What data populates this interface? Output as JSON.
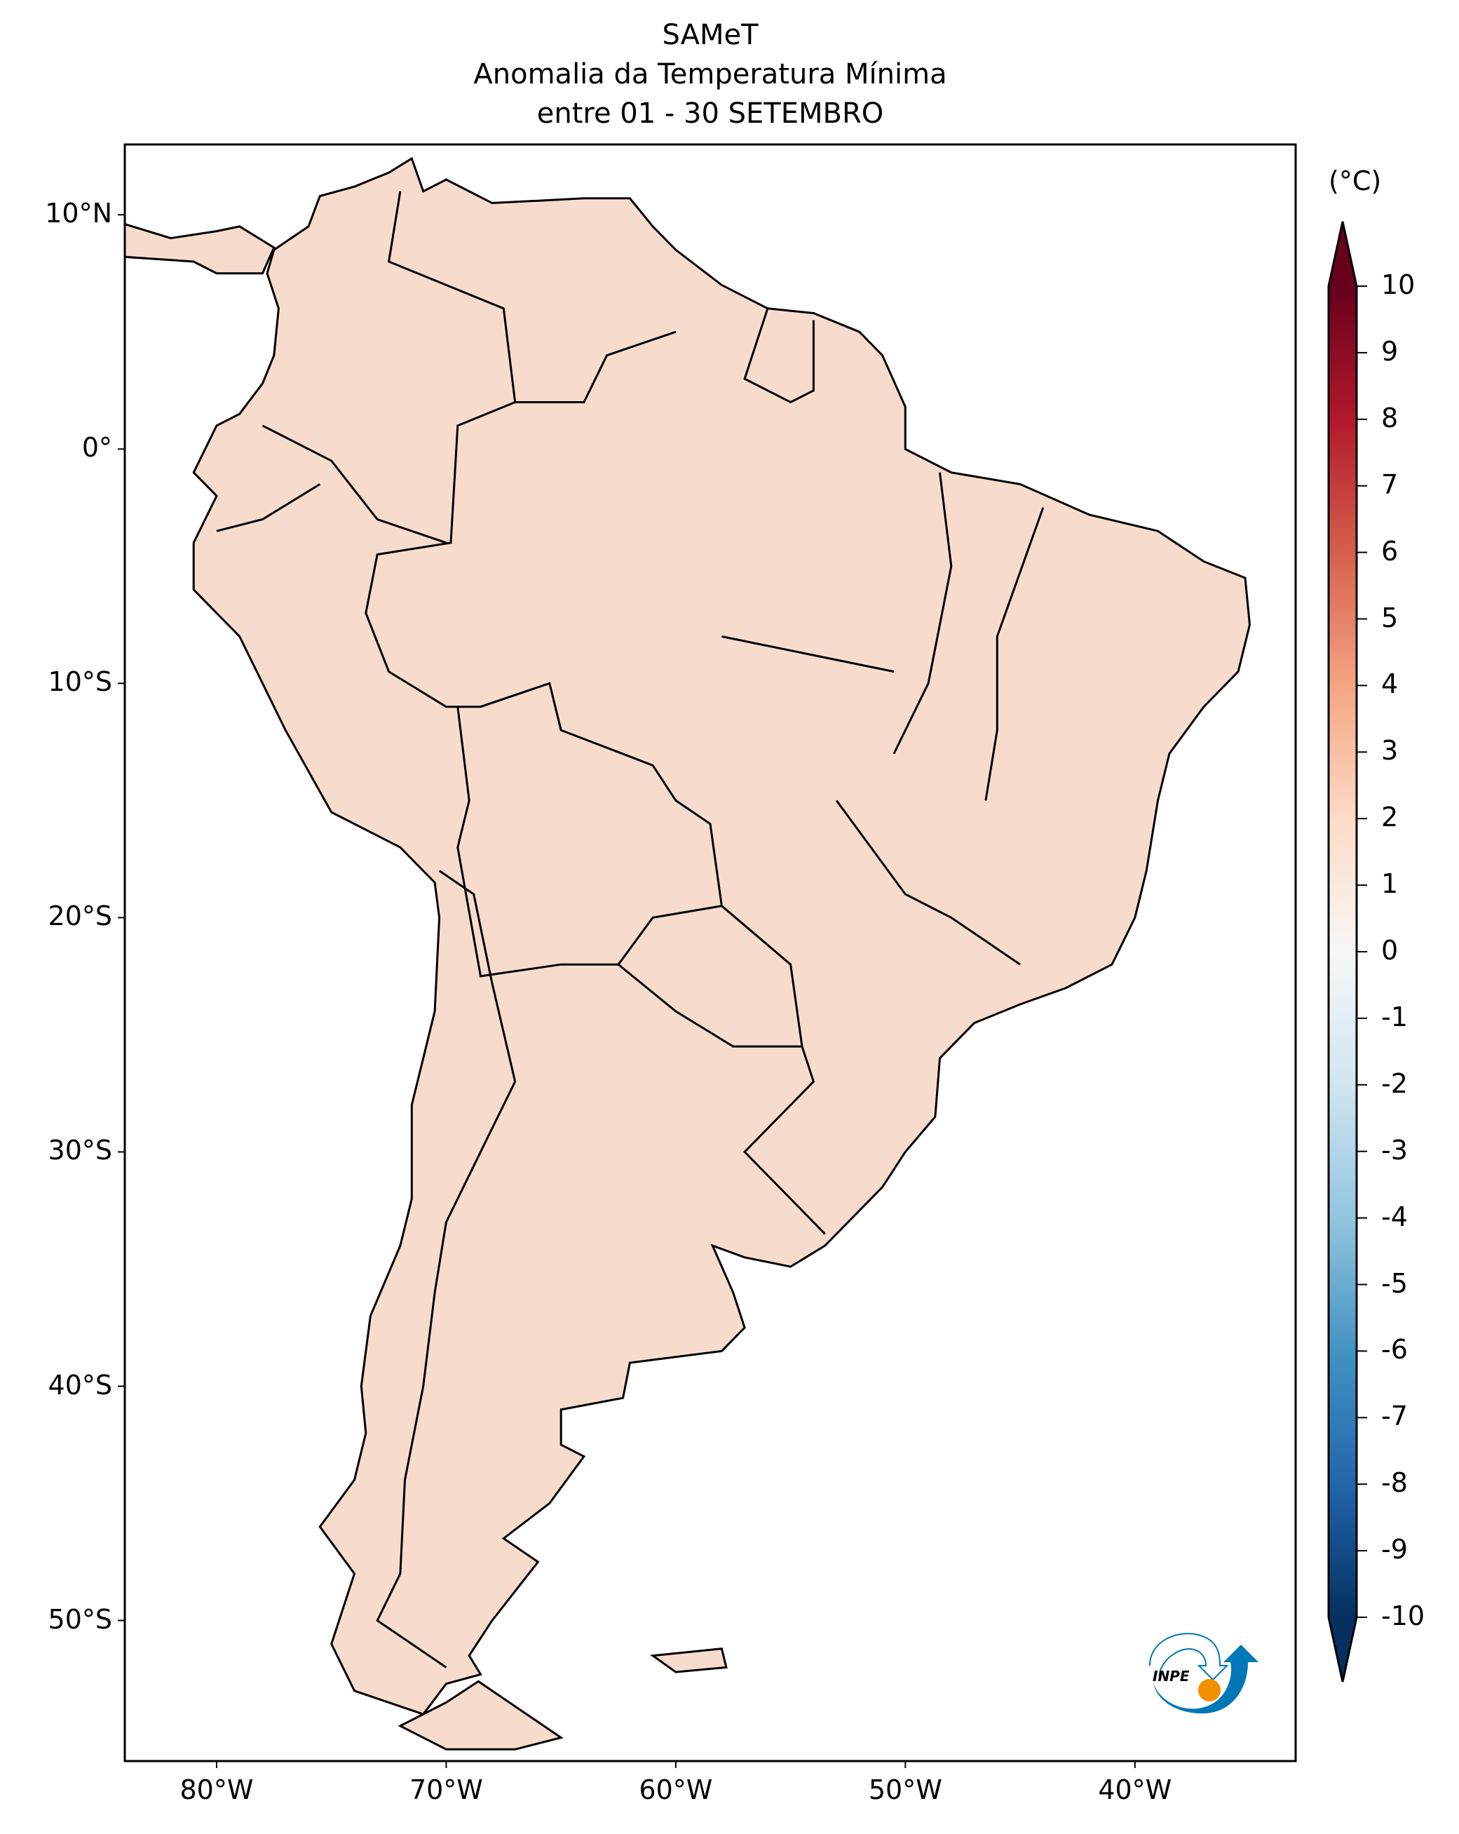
{
  "title": {
    "line1": "SAMeT",
    "line2": "Anomalia da Temperatura Mínima",
    "line3": "entre 01 - 30 SETEMBRO"
  },
  "map": {
    "lon_range": [
      -84,
      -33
    ],
    "lat_range": [
      -56,
      13
    ],
    "x_ticks": [
      {
        "lon": -80,
        "label": "80°W"
      },
      {
        "lon": -70,
        "label": "70°W"
      },
      {
        "lon": -60,
        "label": "60°W"
      },
      {
        "lon": -50,
        "label": "50°W"
      },
      {
        "lon": -40,
        "label": "40°W"
      }
    ],
    "y_ticks": [
      {
        "lat": 10,
        "label": "10°N"
      },
      {
        "lat": 0,
        "label": "0°"
      },
      {
        "lat": -10,
        "label": "10°S"
      },
      {
        "lat": -20,
        "label": "20°S"
      },
      {
        "lat": -30,
        "label": "30°S"
      },
      {
        "lat": -40,
        "label": "40°S"
      },
      {
        "lat": -50,
        "label": "50°S"
      }
    ],
    "land_color": "#f7dccd",
    "warm_color": "#eeaa8c",
    "cool_color": "#c6dbef"
  },
  "colorbar": {
    "unit": "(°C)",
    "min": -10,
    "max": 10,
    "extend": "both",
    "colormap": "RdBu_r",
    "ticks": [
      "10",
      "9",
      "8",
      "7",
      "6",
      "5",
      "4",
      "3",
      "2",
      "1",
      "0",
      "-1",
      "-2",
      "-3",
      "-4",
      "-5",
      "-6",
      "-7",
      "-8",
      "-9",
      "-10"
    ]
  },
  "logo": {
    "text": "INPE",
    "blue": "#0077b6",
    "orange": "#f29100"
  }
}
